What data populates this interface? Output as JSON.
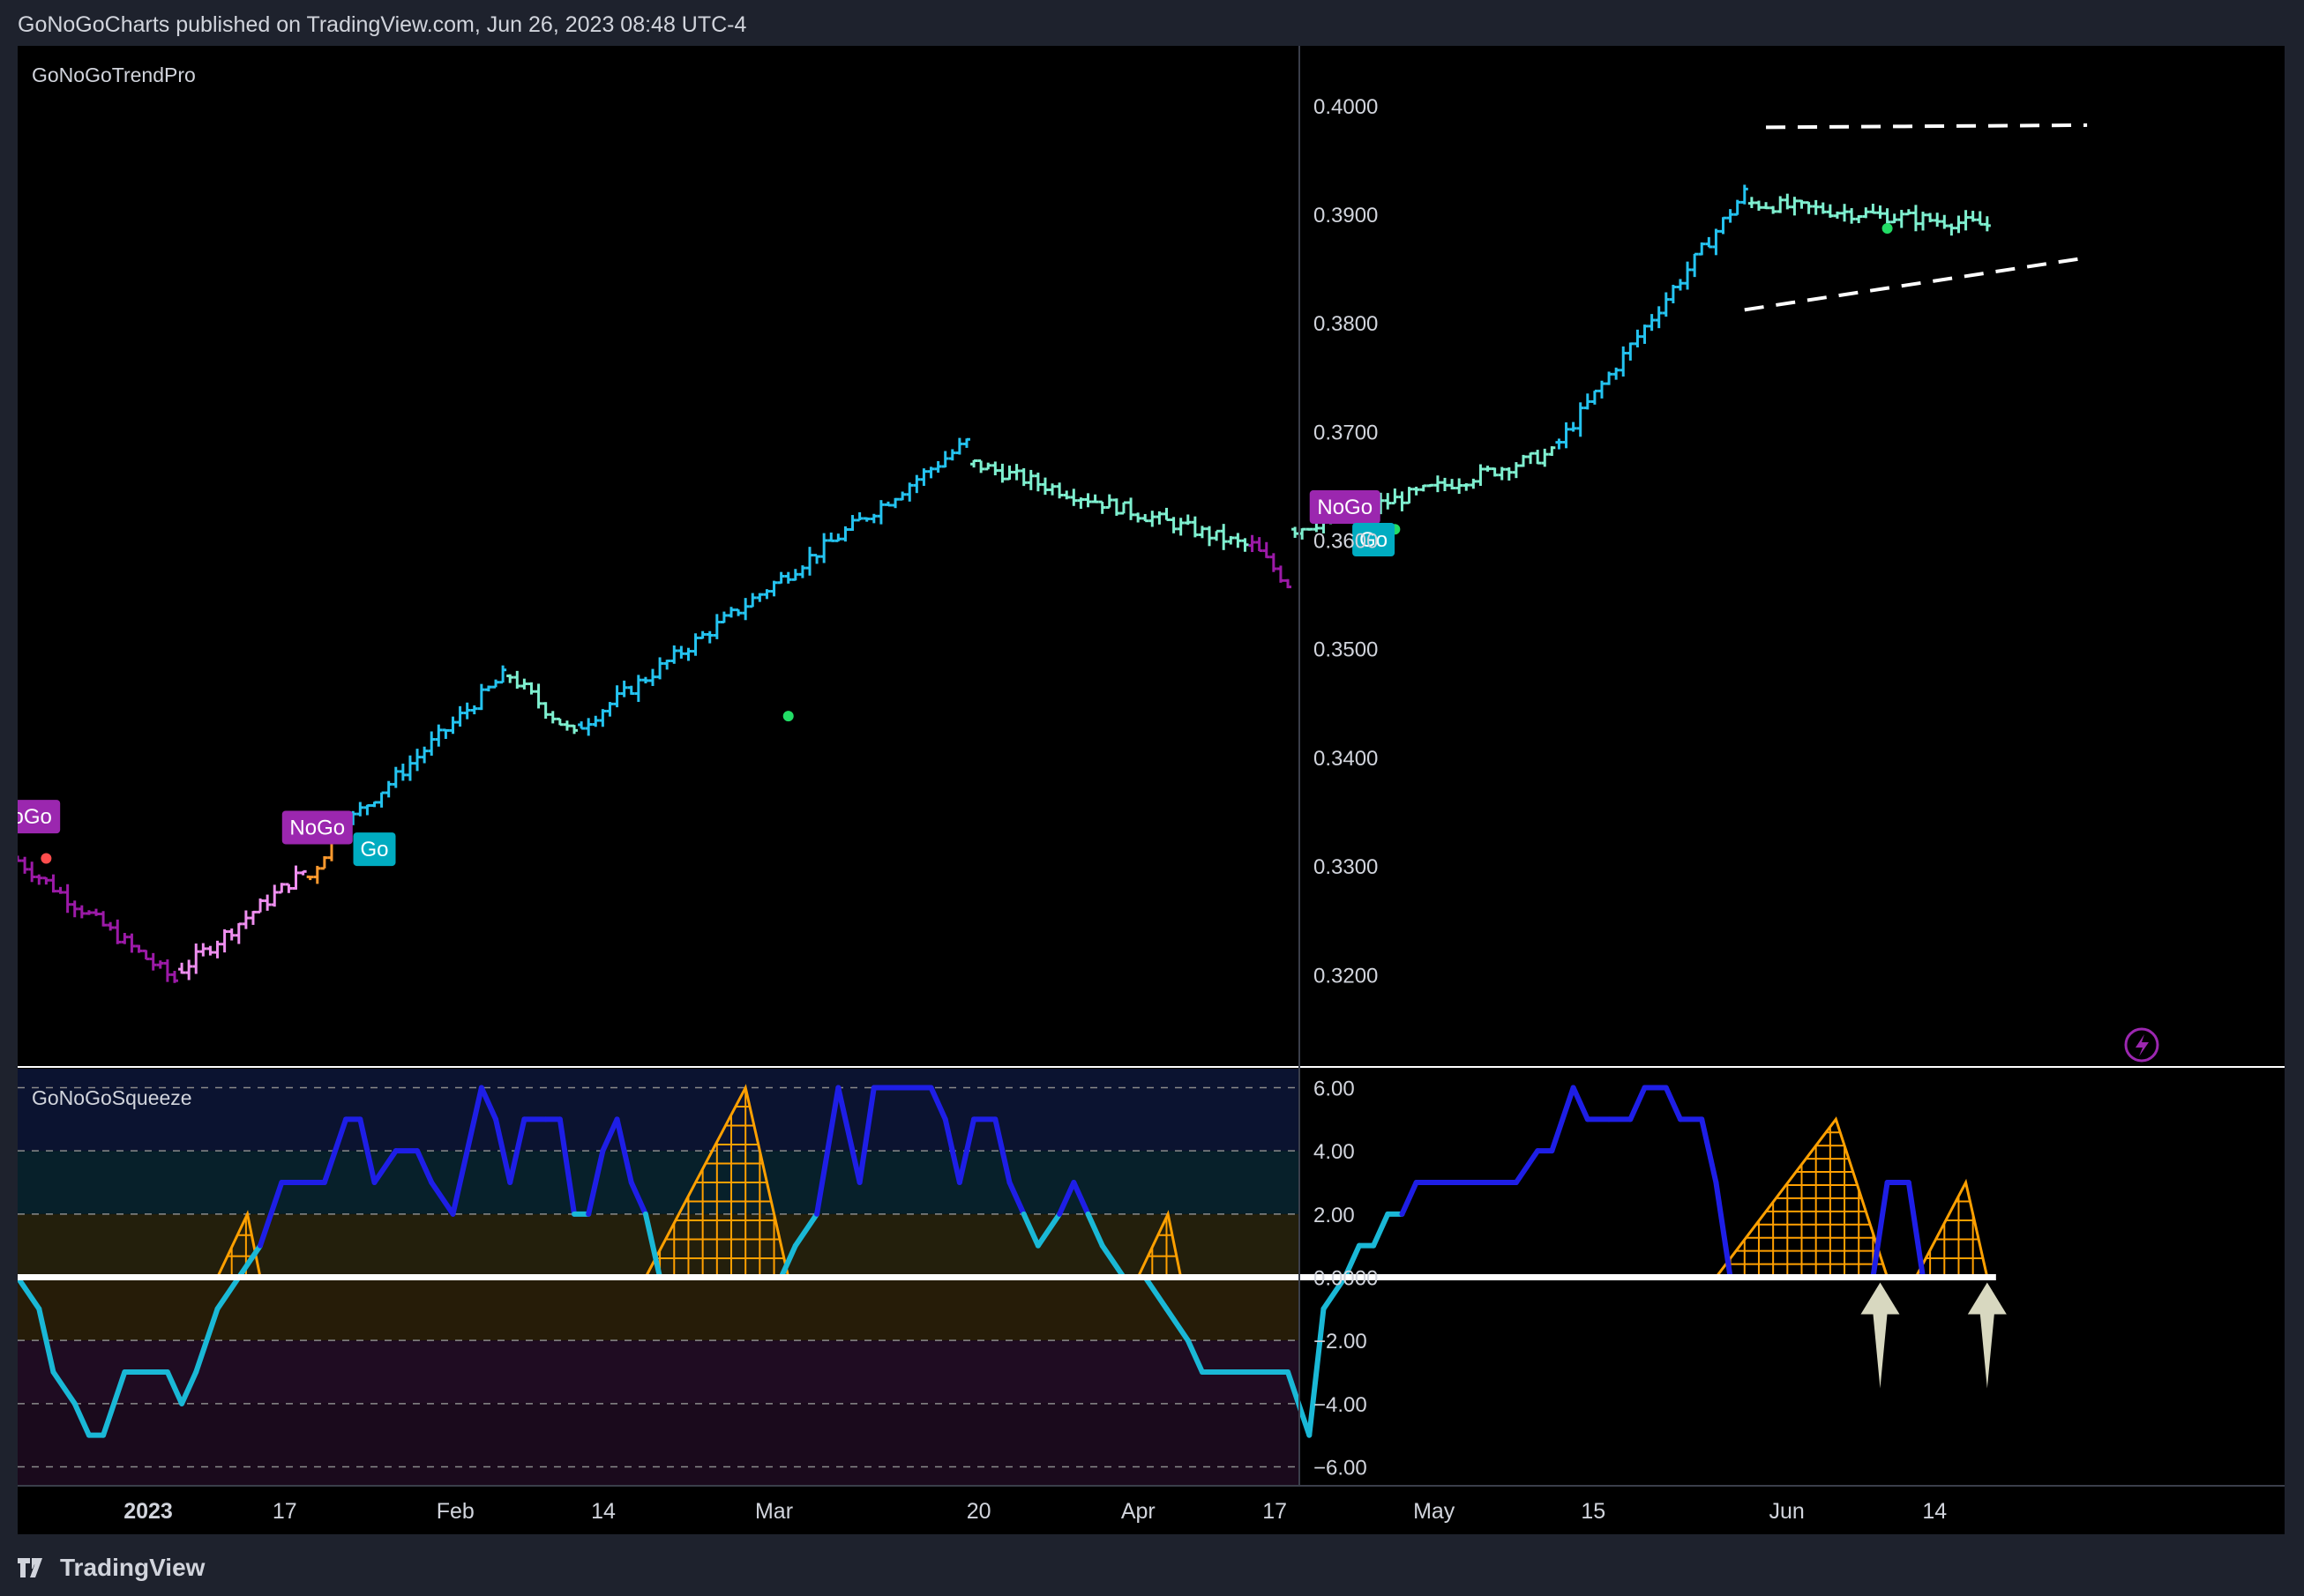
{
  "header": {
    "published_text": "GoNoGoCharts published on TradingView.com, Jun 26, 2023 08:48 UTC-4"
  },
  "footer": {
    "brand": "TradingView",
    "logo_icon": "tradingview-logo-icon"
  },
  "colors": {
    "background": "#000000",
    "page": "#1e222d",
    "axis_text": "#d1d4dc",
    "go_strong": "#1e90ff",
    "go_bright": "#24c3f0",
    "go_weak": "#7ff0d0",
    "nogo_strong": "#9c1aa8",
    "nogo_weak": "#ef8ff0",
    "amber": "#ff9a2e",
    "nogo_label": "#9b27af",
    "go_label": "#00acc1",
    "squeeze_blue": "#1e1ee6",
    "squeeze_cyan": "#1ab8d6",
    "squeeze_grid": "#ffa000"
  },
  "x_axis": {
    "tick_labels": [
      "2023",
      "17",
      "Feb",
      "14",
      "Mar",
      "20",
      "Apr",
      "17",
      "May",
      "15",
      "Jun",
      "14"
    ]
  },
  "chart_data": [
    {
      "type": "ohlc",
      "title": "GoNoGoTrendPro",
      "ylim": [
        0.3115,
        0.4055
      ],
      "y_ticks": [
        "0.4000",
        "0.3900",
        "0.3800",
        "0.3700",
        "0.3600",
        "0.3500",
        "0.3400",
        "0.3300",
        "0.3200"
      ],
      "icon": "lightning-bolt-icon",
      "series": [
        {
          "name": "",
          "segments": [
            {
              "from": 0,
              "to": 22,
              "start": 0.3305,
              "end": 0.3195,
              "color": "nogo_strong"
            },
            {
              "from": 23,
              "to": 40,
              "start": 0.3205,
              "end": 0.3295,
              "color": "nogo_weak"
            },
            {
              "from": 41,
              "to": 46,
              "start": 0.329,
              "end": 0.3345,
              "color": "amber"
            },
            {
              "from": 47,
              "to": 68,
              "start": 0.3345,
              "end": 0.3475,
              "color": "go_bright"
            },
            {
              "from": 69,
              "to": 78,
              "start": 0.3475,
              "end": 0.342,
              "color": "go_weak"
            },
            {
              "from": 79,
              "to": 133,
              "start": 0.343,
              "end": 0.369,
              "color": "go_bright"
            },
            {
              "from": 134,
              "to": 172,
              "start": 0.367,
              "end": 0.3595,
              "color": "go_weak"
            },
            {
              "from": 173,
              "to": 178,
              "start": 0.3595,
              "end": 0.356,
              "color": "nogo_strong"
            },
            {
              "from": 179,
              "to": 215,
              "start": 0.361,
              "end": 0.368,
              "color": "go_weak"
            },
            {
              "from": 216,
              "to": 242,
              "start": 0.369,
              "end": 0.392,
              "color": "go_bright"
            },
            {
              "from": 243,
              "to": 276,
              "start": 0.391,
              "end": 0.389,
              "color": "go_weak"
            }
          ]
        }
      ],
      "pattern_lines": [
        {
          "name": "upper-resistance",
          "from": [
            245,
            0.398
          ],
          "to": [
            290,
            0.3982
          ]
        },
        {
          "name": "lower-support",
          "from": [
            242,
            0.3812
          ],
          "to": [
            290,
            0.386
          ]
        }
      ],
      "signals": [
        {
          "label": "oGo",
          "kind": "nogo",
          "bar": 2,
          "price": 0.333
        },
        {
          "label": "NoGo",
          "kind": "nogo",
          "bar": 42,
          "price": 0.332
        },
        {
          "label": "Go",
          "kind": "go",
          "bar": 50,
          "price": 0.33
        },
        {
          "label": "NoGo",
          "kind": "nogo",
          "bar": 186,
          "price": 0.3615
        },
        {
          "label": "Go",
          "kind": "go",
          "bar": 190,
          "price": 0.3585
        }
      ],
      "dots": [
        {
          "bar": 4,
          "price": 0.3307,
          "color": "#ff4d4d"
        },
        {
          "bar": 108,
          "price": 0.3438,
          "color": "#22dd66"
        },
        {
          "bar": 193,
          "price": 0.361,
          "color": "#22dd66"
        },
        {
          "bar": 262,
          "price": 0.3887,
          "color": "#22dd66"
        }
      ]
    },
    {
      "type": "line",
      "title": "GoNoGoSqueeze",
      "ylim": [
        -6.6,
        6.6
      ],
      "y_ticks": [
        "6.00",
        "4.00",
        "2.00",
        "0.0000",
        "−2.00",
        "−4.00",
        "−6.00"
      ],
      "zero_line": 0,
      "bands": [
        {
          "from": 4,
          "to": 6.6,
          "color": "#0b1330"
        },
        {
          "from": 2,
          "to": 4,
          "color": "#07202a"
        },
        {
          "from": 0,
          "to": 2,
          "color": "#231f0c"
        },
        {
          "from": -2,
          "to": 0,
          "color": "#261c08"
        },
        {
          "from": -4,
          "to": -2,
          "color": "#1f0c22"
        },
        {
          "from": -6.6,
          "to": -4,
          "color": "#1a0a1c"
        }
      ],
      "series": [
        {
          "name": "",
          "points": [
            [
              0,
              0
            ],
            [
              3,
              -1
            ],
            [
              5,
              -3
            ],
            [
              8,
              -4
            ],
            [
              10,
              -5
            ],
            [
              12,
              -5
            ],
            [
              15,
              -3
            ],
            [
              18,
              -3
            ],
            [
              21,
              -3
            ],
            [
              23,
              -4
            ],
            [
              25,
              -3
            ],
            [
              28,
              -1
            ],
            [
              31,
              0
            ],
            [
              34,
              1
            ],
            [
              37,
              3
            ],
            [
              40,
              3
            ],
            [
              43,
              3
            ],
            [
              46,
              5
            ],
            [
              48,
              5
            ],
            [
              50,
              3
            ],
            [
              53,
              4
            ],
            [
              56,
              4
            ],
            [
              58,
              3
            ],
            [
              61,
              2
            ],
            [
              63,
              4
            ],
            [
              65,
              6
            ],
            [
              67,
              5
            ],
            [
              69,
              3
            ],
            [
              71,
              5
            ],
            [
              74,
              5
            ],
            [
              76,
              5
            ],
            [
              78,
              2
            ],
            [
              80,
              2
            ],
            [
              82,
              4
            ],
            [
              84,
              5
            ],
            [
              86,
              3
            ],
            [
              88,
              2
            ],
            [
              90,
              0
            ],
            [
              93,
              0
            ],
            [
              96,
              0
            ],
            [
              99,
              0
            ],
            [
              102,
              0
            ],
            [
              105,
              0
            ],
            [
              107,
              0
            ],
            [
              109,
              1
            ],
            [
              112,
              2
            ],
            [
              115,
              6
            ],
            [
              118,
              3
            ],
            [
              120,
              6
            ],
            [
              123,
              6
            ],
            [
              126,
              6
            ],
            [
              128,
              6
            ],
            [
              130,
              5
            ],
            [
              132,
              3
            ],
            [
              134,
              5
            ],
            [
              137,
              5
            ],
            [
              139,
              3
            ],
            [
              141,
              2
            ],
            [
              143,
              1
            ],
            [
              146,
              2
            ],
            [
              148,
              3
            ],
            [
              150,
              2
            ],
            [
              152,
              1
            ],
            [
              155,
              0
            ],
            [
              158,
              0
            ],
            [
              161,
              -1
            ],
            [
              164,
              -2
            ],
            [
              166,
              -3
            ],
            [
              169,
              -3
            ],
            [
              172,
              -3
            ],
            [
              175,
              -3
            ],
            [
              178,
              -3
            ],
            [
              181,
              -5
            ],
            [
              183,
              -1
            ],
            [
              186,
              0
            ],
            [
              188,
              1
            ],
            [
              190,
              1
            ],
            [
              192,
              2
            ],
            [
              194,
              2
            ],
            [
              196,
              3
            ],
            [
              198,
              3
            ],
            [
              201,
              3
            ],
            [
              204,
              3
            ],
            [
              207,
              3
            ],
            [
              210,
              3
            ],
            [
              213,
              4
            ],
            [
              215,
              4
            ],
            [
              218,
              6
            ],
            [
              220,
              5
            ],
            [
              223,
              5
            ],
            [
              226,
              5
            ],
            [
              228,
              6
            ],
            [
              231,
              6
            ],
            [
              233,
              5
            ],
            [
              236,
              5
            ],
            [
              238,
              3
            ],
            [
              240,
              0
            ],
            [
              243,
              0
            ],
            [
              246,
              0
            ],
            [
              249,
              0
            ],
            [
              252,
              0
            ],
            [
              255,
              0
            ],
            [
              258,
              0
            ],
            [
              260,
              0
            ],
            [
              262,
              3
            ],
            [
              265,
              3
            ],
            [
              267,
              0
            ],
            [
              270,
              0
            ],
            [
              273,
              0
            ],
            [
              276,
              0
            ]
          ],
          "colors": [
            "squeeze_blue",
            "squeeze_cyan"
          ]
        }
      ],
      "grid_blocks": [
        {
          "from": 28,
          "to": 34,
          "peak": 2
        },
        {
          "from": 88,
          "to": 108,
          "peak": 6
        },
        {
          "from": 157,
          "to": 163,
          "peak": 2
        },
        {
          "from": 238,
          "to": 262,
          "peak": 5
        },
        {
          "from": 266,
          "to": 276,
          "peak": 3
        }
      ],
      "arrows": [
        {
          "bar": 261,
          "color": "#d8d8c0"
        },
        {
          "bar": 276,
          "color": "#d8d8c0"
        }
      ]
    }
  ]
}
